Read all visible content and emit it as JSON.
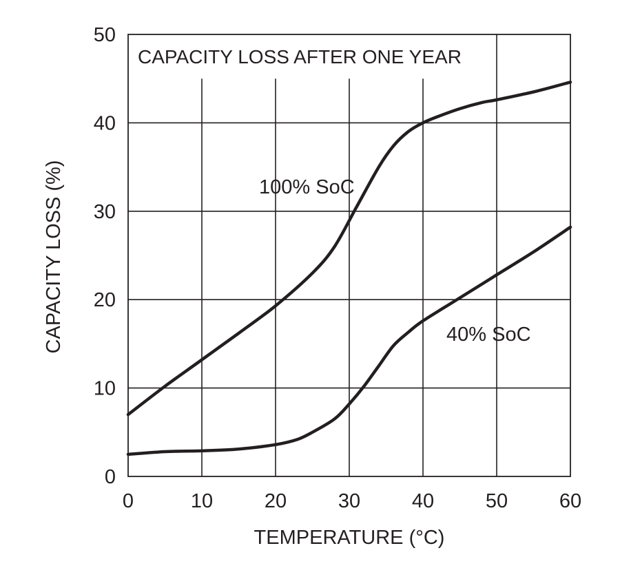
{
  "chart_data": {
    "type": "line",
    "title": "CAPACITY LOSS AFTER ONE YEAR",
    "xlabel": "TEMPERATURE (°C)",
    "ylabel": "CAPACITY LOSS (%)",
    "xlim": [
      0,
      60
    ],
    "ylim": [
      0,
      50
    ],
    "x_ticks": [
      0,
      10,
      20,
      30,
      40,
      50,
      60
    ],
    "y_ticks": [
      0,
      10,
      20,
      30,
      40,
      50
    ],
    "grid": true,
    "series": [
      {
        "name": "100% SoC",
        "x": [
          0,
          5,
          10,
          15,
          20,
          25,
          28,
          31,
          34,
          36,
          38,
          40,
          42,
          45,
          48,
          50,
          55,
          60
        ],
        "y": [
          7.0,
          10.2,
          13.2,
          16.2,
          19.3,
          23.0,
          26.0,
          30.5,
          35.0,
          37.4,
          39.0,
          40.0,
          40.7,
          41.6,
          42.3,
          42.6,
          43.5,
          44.6
        ]
      },
      {
        "name": "40% SoC",
        "x": [
          0,
          5,
          10,
          15,
          20,
          23,
          25,
          28,
          30,
          32,
          34,
          36,
          38,
          40,
          45,
          50,
          55,
          60
        ],
        "y": [
          2.5,
          2.8,
          2.9,
          3.1,
          3.6,
          4.2,
          5.0,
          6.5,
          8.2,
          10.2,
          12.5,
          14.8,
          16.3,
          17.6,
          20.2,
          22.8,
          25.4,
          28.2
        ]
      }
    ]
  }
}
